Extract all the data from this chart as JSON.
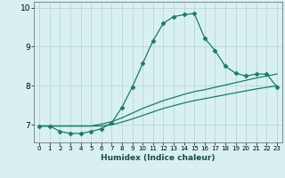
{
  "xlabel": "Humidex (Indice chaleur)",
  "ylabel": "",
  "bg_color": "#d8f0f0",
  "grid_color": "#b8d8d8",
  "line_color": "#1a7a6a",
  "xlim": [
    -0.5,
    23.5
  ],
  "ylim": [
    6.55,
    10.15
  ],
  "yticks": [
    7,
    8,
    9,
    10
  ],
  "xticks": [
    0,
    1,
    2,
    3,
    4,
    5,
    6,
    7,
    8,
    9,
    10,
    11,
    12,
    13,
    14,
    15,
    16,
    17,
    18,
    19,
    20,
    21,
    22,
    23
  ],
  "line1_x": [
    0,
    1,
    2,
    3,
    4,
    5,
    6,
    7,
    8,
    9,
    10,
    11,
    12,
    13,
    14,
    15,
    16,
    17,
    18,
    19,
    20,
    21,
    22,
    23
  ],
  "line1_y": [
    6.97,
    6.97,
    6.83,
    6.78,
    6.78,
    6.83,
    6.9,
    7.05,
    7.45,
    7.97,
    8.57,
    9.15,
    9.6,
    9.77,
    9.82,
    9.85,
    9.22,
    8.9,
    8.5,
    8.32,
    8.25,
    8.3,
    8.3,
    7.97
  ],
  "line2_x": [
    0,
    1,
    2,
    3,
    4,
    5,
    6,
    7,
    8,
    9,
    10,
    11,
    12,
    13,
    14,
    15,
    16,
    17,
    18,
    19,
    20,
    21,
    22,
    23
  ],
  "line2_y": [
    6.97,
    6.97,
    6.97,
    6.97,
    6.97,
    6.97,
    7.02,
    7.08,
    7.18,
    7.3,
    7.42,
    7.52,
    7.62,
    7.7,
    7.78,
    7.85,
    7.9,
    7.96,
    8.02,
    8.08,
    8.14,
    8.2,
    8.25,
    8.3
  ],
  "line3_x": [
    0,
    1,
    2,
    3,
    4,
    5,
    6,
    7,
    8,
    9,
    10,
    11,
    12,
    13,
    14,
    15,
    16,
    17,
    18,
    19,
    20,
    21,
    22,
    23
  ],
  "line3_y": [
    6.97,
    6.97,
    6.97,
    6.97,
    6.97,
    6.97,
    6.97,
    7.0,
    7.07,
    7.15,
    7.24,
    7.33,
    7.42,
    7.49,
    7.56,
    7.62,
    7.67,
    7.72,
    7.77,
    7.82,
    7.87,
    7.92,
    7.96,
    8.0
  ],
  "marker": "D",
  "marker_size": 2.5,
  "linewidth": 0.9
}
